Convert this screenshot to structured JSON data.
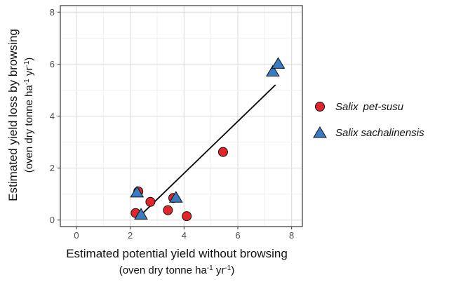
{
  "chart_data": {
    "type": "scatter",
    "xlabel": {
      "line1": "Estimated potential yield without browsing",
      "line2_pre": "(oven dry tonne ha",
      "line2_sup1": "-1",
      "line2_mid": " yr",
      "line2_sup2": "-1",
      "line2_post": ")"
    },
    "ylabel": {
      "line1": "Estimated yield loss by browsing",
      "line2_pre": "(oven dry tonne ha",
      "line2_sup1": "-1",
      "line2_mid": " yr",
      "line2_sup2": "-1",
      "line2_post": ")"
    },
    "xlim": [
      -0.6,
      8.4
    ],
    "ylim": [
      -0.25,
      8.25
    ],
    "x_ticks": [
      0,
      2,
      4,
      6,
      8
    ],
    "y_ticks": [
      0,
      2,
      4,
      6,
      8
    ],
    "x_tick_labels": [
      "0",
      "2",
      "4",
      "6",
      "8"
    ],
    "y_tick_labels": [
      "0",
      "2",
      "4",
      "6",
      "8"
    ],
    "grid": true,
    "legend_position": "right",
    "series": [
      {
        "name_parts": [
          "Salix",
          "pet-susu"
        ],
        "marker": "circle",
        "color": "#e0262b",
        "points": [
          {
            "x": 2.2,
            "y": 0.27
          },
          {
            "x": 2.3,
            "y": 1.1
          },
          {
            "x": 2.75,
            "y": 0.7
          },
          {
            "x": 3.4,
            "y": 0.38
          },
          {
            "x": 3.6,
            "y": 0.85
          },
          {
            "x": 4.1,
            "y": 0.15
          },
          {
            "x": 5.45,
            "y": 2.62
          }
        ]
      },
      {
        "name_parts": [
          "Salix",
          "sachalinensis"
        ],
        "marker": "triangle",
        "color": "#3a7cc2",
        "points": [
          {
            "x": 2.25,
            "y": 1.05
          },
          {
            "x": 2.4,
            "y": 0.2
          },
          {
            "x": 3.7,
            "y": 0.85
          },
          {
            "x": 7.3,
            "y": 5.7
          },
          {
            "x": 7.5,
            "y": 6.0
          }
        ]
      }
    ],
    "fit_line": {
      "x1": 2.4,
      "y1": 0.2,
      "x2": 7.4,
      "y2": 5.2
    }
  }
}
